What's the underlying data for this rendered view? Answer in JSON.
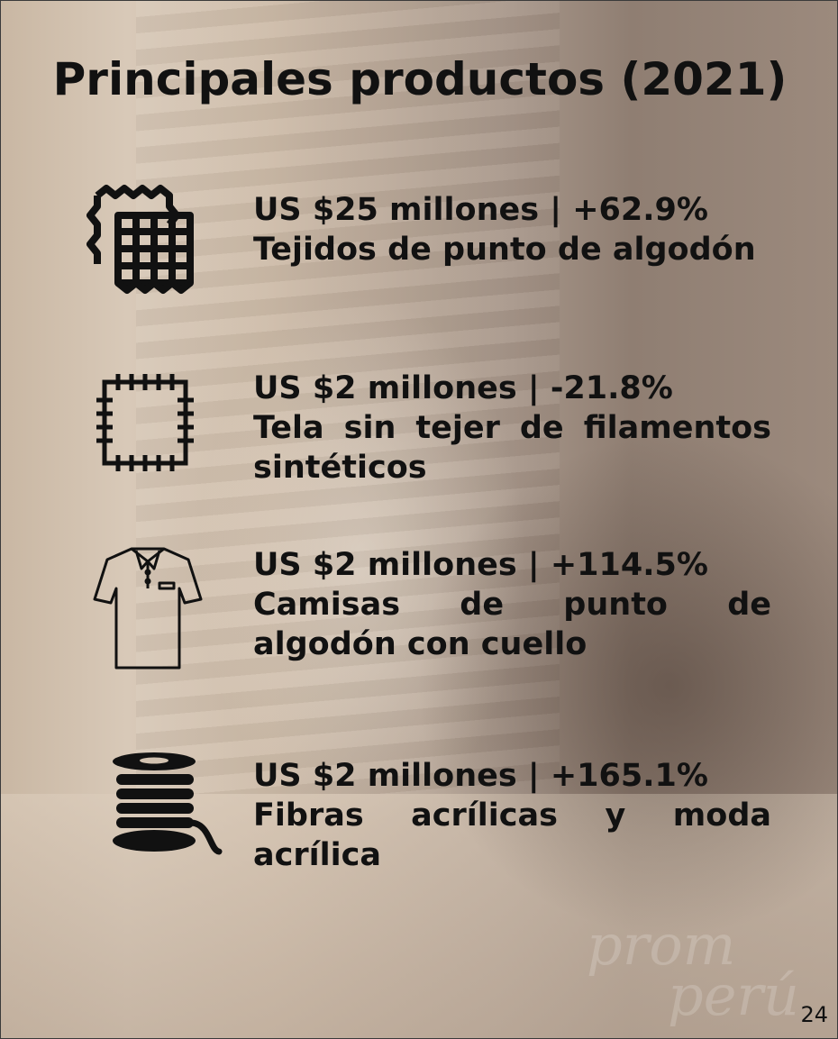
{
  "title": "Principales productos (2021)",
  "items": [
    {
      "headline": "US $25 millones | +62.9%",
      "label": "Tejidos de punto de algodón"
    },
    {
      "headline": "US $2 millones | -21.8%",
      "label": "Tela sin tejer de filamentos sintéticos"
    },
    {
      "headline": "US $2 millones | +114.5%",
      "label": "Camisas de punto de algodón con cuello"
    },
    {
      "headline": "US $2 millones | +165.1%",
      "label": "Fibras acrílicas y moda acrílica"
    }
  ],
  "watermark": [
    "prom",
    "perú"
  ],
  "page_number": "24"
}
